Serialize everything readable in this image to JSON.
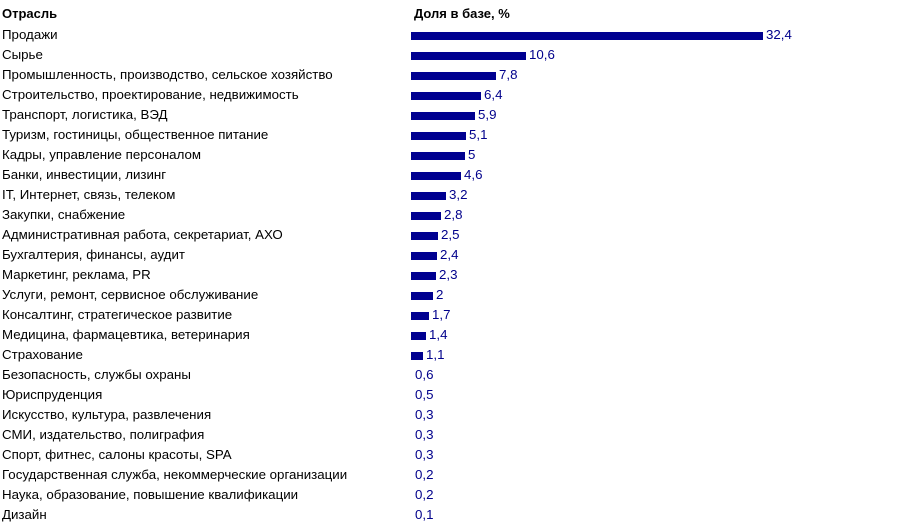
{
  "header": {
    "left": "Отрасль",
    "right": "Доля в базе, %"
  },
  "colors": {
    "bar": "#000090",
    "value_text": "#00008b"
  },
  "rows": [
    {
      "label": "Продажи",
      "value": 32.4,
      "text": "32,4"
    },
    {
      "label": "Сырье",
      "value": 10.6,
      "text": "10,6"
    },
    {
      "label": "Промышленность, производство, сельское хозяйство",
      "value": 7.8,
      "text": "7,8"
    },
    {
      "label": "Строительство, проектирование, недвижимость",
      "value": 6.4,
      "text": "6,4"
    },
    {
      "label": "Транспорт, логистика, ВЭД",
      "value": 5.9,
      "text": "5,9"
    },
    {
      "label": "Туризм, гостиницы, общественное питание",
      "value": 5.1,
      "text": "5,1"
    },
    {
      "label": "Кадры, управление персоналом",
      "value": 5,
      "text": "5"
    },
    {
      "label": "Банки, инвестиции, лизинг",
      "value": 4.6,
      "text": "4,6"
    },
    {
      "label": "IT, Интернет, связь, телеком",
      "value": 3.2,
      "text": "3,2"
    },
    {
      "label": "Закупки, снабжение",
      "value": 2.8,
      "text": "2,8"
    },
    {
      "label": "Административная работа, секретариат, АХО",
      "value": 2.5,
      "text": "2,5"
    },
    {
      "label": "Бухгалтерия, финансы, аудит",
      "value": 2.4,
      "text": "2,4"
    },
    {
      "label": "Маркетинг, реклама, PR",
      "value": 2.3,
      "text": "2,3"
    },
    {
      "label": "Услуги, ремонт, сервисное обслуживание",
      "value": 2,
      "text": "2"
    },
    {
      "label": "Консалтинг, стратегическое развитие",
      "value": 1.7,
      "text": "1,7"
    },
    {
      "label": "Медицина, фармацевтика, ветеринария",
      "value": 1.4,
      "text": "1,4"
    },
    {
      "label": "Страхование",
      "value": 1.1,
      "text": "1,1"
    },
    {
      "label": "Безопасность, службы охраны",
      "value": 0.6,
      "text": "0,6"
    },
    {
      "label": "Юриспруденция",
      "value": 0.5,
      "text": "0,5"
    },
    {
      "label": "Искусство, культура, развлечения",
      "value": 0.3,
      "text": "0,3"
    },
    {
      "label": "СМИ, издательство, полиграфия",
      "value": 0.3,
      "text": "0,3"
    },
    {
      "label": "Спорт, фитнес, салоны красоты, SPA",
      "value": 0.3,
      "text": "0,3"
    },
    {
      "label": "Государственная служба, некоммерческие организации",
      "value": 0.2,
      "text": "0,2"
    },
    {
      "label": "Наука, образование, повышение квалификации",
      "value": 0.2,
      "text": "0,2"
    },
    {
      "label": "Дизайн",
      "value": 0.1,
      "text": "0,1"
    }
  ],
  "chart_data": {
    "type": "bar",
    "orientation": "horizontal",
    "title": "",
    "xlabel": "Доля в базе, %",
    "ylabel": "Отрасль",
    "categories": [
      "Продажи",
      "Сырье",
      "Промышленность, производство, сельское хозяйство",
      "Строительство, проектирование, недвижимость",
      "Транспорт, логистика, ВЭД",
      "Туризм, гостиницы, общественное питание",
      "Кадры, управление персоналом",
      "Банки, инвестиции, лизинг",
      "IT, Интернет, связь, телеком",
      "Закупки, снабжение",
      "Административная работа, секретариат, АХО",
      "Бухгалтерия, финансы, аудит",
      "Маркетинг, реклама, PR",
      "Услуги, ремонт, сервисное обслуживание",
      "Консалтинг, стратегическое развитие",
      "Медицина, фармацевтика, ветеринария",
      "Страхование",
      "Безопасность, службы охраны",
      "Юриспруденция",
      "Искусство, культура, развлечения",
      "СМИ, издательство, полиграфия",
      "Спорт, фитнес, салоны красоты, SPA",
      "Государственная служба, некоммерческие организации",
      "Наука, образование, повышение квалификации",
      "Дизайн"
    ],
    "values": [
      32.4,
      10.6,
      7.8,
      6.4,
      5.9,
      5.1,
      5,
      4.6,
      3.2,
      2.8,
      2.5,
      2.4,
      2.3,
      2,
      1.7,
      1.4,
      1.1,
      0.6,
      0.5,
      0.3,
      0.3,
      0.3,
      0.2,
      0.2,
      0.1
    ],
    "data_labels": true,
    "grid": false,
    "legend": null,
    "xlim": [
      0,
      32.4
    ]
  }
}
